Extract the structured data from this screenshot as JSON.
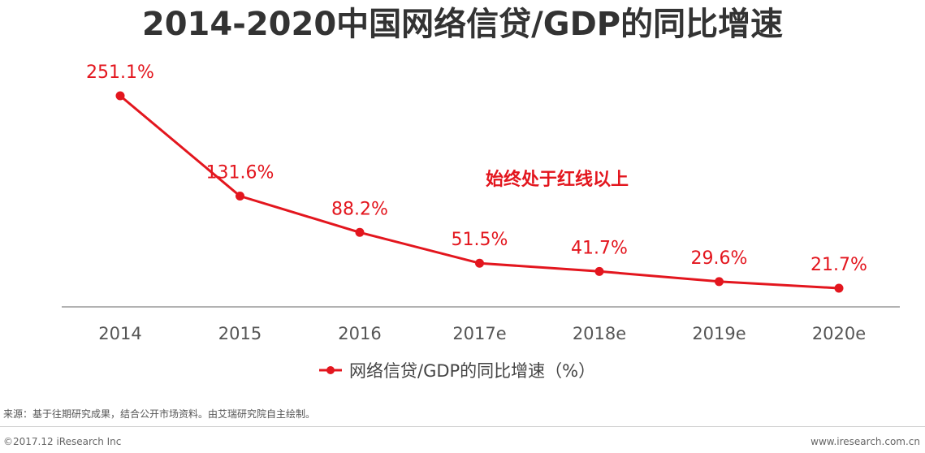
{
  "chart_data": {
    "type": "line",
    "title": "2014-2020中国网络信贷/GDP的同比增速",
    "categories": [
      "2014",
      "2015",
      "2016",
      "2017e",
      "2018e",
      "2019e",
      "2020e"
    ],
    "series": [
      {
        "name": "网络信贷/GDP的同比增速（%）",
        "values": [
          251.1,
          131.6,
          88.2,
          51.5,
          41.7,
          29.6,
          21.7
        ],
        "labels": [
          "251.1%",
          "131.6%",
          "88.2%",
          "51.5%",
          "41.7%",
          "29.6%",
          "21.7%"
        ]
      }
    ],
    "annotation": "始终处于红线以上",
    "xlabel": "",
    "ylabel": "",
    "ylim": [
      0,
      251.1
    ],
    "grid": false,
    "legend": "bottom-center",
    "color": "#e3161e"
  },
  "footer": {
    "source": "来源：基于往期研究成果，结合公开市场资料。由艾瑞研究院自主绘制。",
    "copyright": "©2017.12 iResearch Inc",
    "website": "www.iresearch.com.cn"
  },
  "colors": {
    "series": "#e3161e",
    "title": "#333333",
    "tick": "#555555",
    "axis": "#999999"
  }
}
